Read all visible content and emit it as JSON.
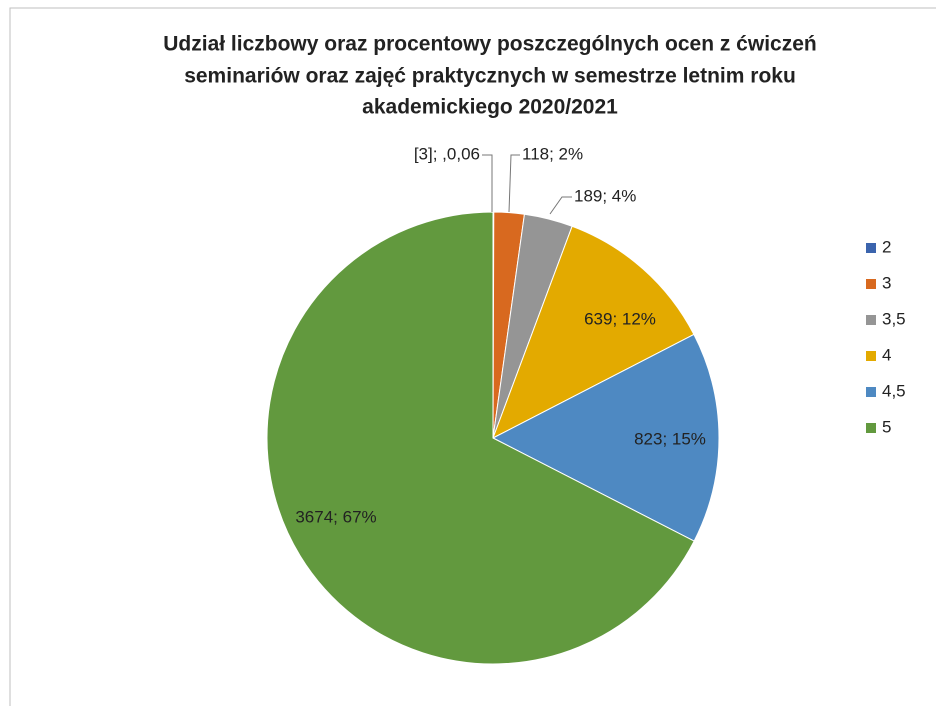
{
  "chart_data": {
    "type": "pie",
    "title": [
      "Udział liczbowy oraz procentowy poszczególnych ocen z ćwiczeń",
      "seminariów oraz zajęć praktycznych w semestrze letnim roku",
      "akademickiego 2020/2021"
    ],
    "categories": [
      "2",
      "3",
      "3,5",
      "4",
      "4,5",
      "5"
    ],
    "values": [
      3,
      118,
      189,
      639,
      823,
      3674
    ],
    "value_labels": [
      "[3]; ,0,06",
      "118; 2%",
      "189; 4%",
      "639; 12%",
      "823; 15%",
      "3674; 67%"
    ],
    "colors": [
      "#3b64ad",
      "#d8691f",
      "#959595",
      "#e3aa00",
      "#4e89c2",
      "#62993e"
    ],
    "legend": "right"
  }
}
